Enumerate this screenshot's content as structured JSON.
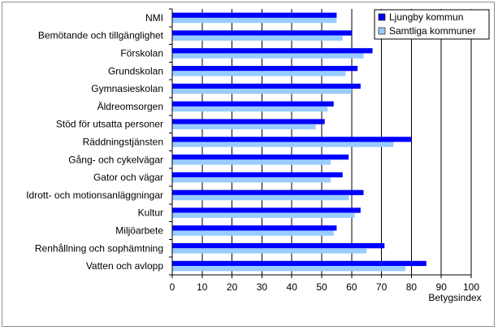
{
  "chart_data": {
    "type": "bar",
    "orientation": "horizontal",
    "title": "",
    "xlabel": "Betygsindex",
    "ylabel": "",
    "xlim": [
      0,
      100
    ],
    "x_ticks": [
      0,
      10,
      20,
      30,
      40,
      50,
      60,
      70,
      80,
      90,
      100
    ],
    "grid": "vertical",
    "legend_position": "top-right",
    "categories": [
      "NMI",
      "Bemötande och tillgänglighet",
      "Förskolan",
      "Grundskolan",
      "Gymnasieskolan",
      "Äldreomsorgen",
      "Stöd för utsatta personer",
      "Räddningstjänsten",
      "Gång- och cykelvägar",
      "Gator och vägar",
      "Idrott- och motionsanläggningar",
      "Kultur",
      "Miljöarbete",
      "Renhållning och sophämtning",
      "Vatten och avlopp"
    ],
    "series": [
      {
        "name": "Ljungby kommun",
        "color": "#0000ff",
        "values": [
          55,
          60,
          67,
          62,
          63,
          54,
          51,
          80,
          59,
          57,
          64,
          63,
          55,
          71,
          85
        ]
      },
      {
        "name": "Samtliga kommuner",
        "color": "#99ccff",
        "values": [
          55,
          57,
          64,
          58,
          60,
          52,
          48,
          74,
          53,
          53,
          59,
          61,
          54,
          65,
          78
        ]
      }
    ]
  }
}
